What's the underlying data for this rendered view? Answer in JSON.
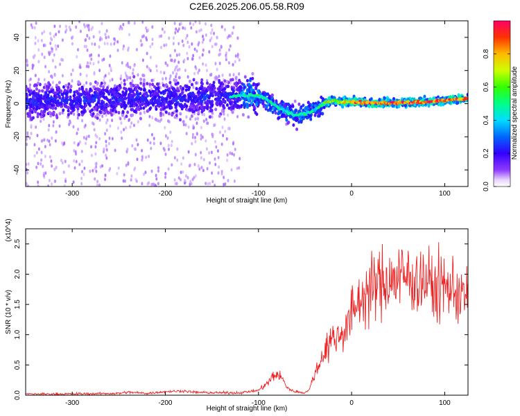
{
  "title": "C2E6.2025.206.05.58.R09",
  "chart_data": [
    {
      "type": "heatmap",
      "title": "",
      "xlabel": "Height of straight line (km)",
      "ylabel": "Frequency (Hz)",
      "xlim": [
        -350,
        125
      ],
      "ylim": [
        -50,
        50
      ],
      "xticks": [
        -300,
        -200,
        -100,
        0,
        100
      ],
      "yticks": [
        -40,
        -20,
        0,
        20,
        40
      ],
      "colorbar": {
        "label": "Normalized spectral amplitude",
        "ticks": [
          "0.0",
          "0.2",
          "0.4",
          "0.6",
          "0.8"
        ],
        "range": [
          0,
          1
        ]
      },
      "ridge": {
        "x": [
          -350,
          -300,
          -250,
          -200,
          -150,
          -120,
          -100,
          -90,
          -80,
          -70,
          -60,
          -50,
          -40,
          -30,
          -20,
          -10,
          0,
          20,
          50,
          80,
          100,
          125
        ],
        "y": [
          2,
          2,
          3,
          3,
          4,
          5,
          5,
          2,
          -2,
          -5,
          -7,
          -6,
          -4,
          0,
          2,
          1,
          1,
          0.5,
          0.5,
          1,
          2,
          3
        ]
      }
    },
    {
      "type": "line",
      "title": "",
      "xlabel": "Height of straight line (km)",
      "ylabel": "SNR (10 * v/v)",
      "y_multiplier": "(x10^4)",
      "xlim": [
        -350,
        125
      ],
      "ylim": [
        0,
        2.75
      ],
      "xticks": [
        -300,
        -200,
        -100,
        0,
        100
      ],
      "yticks": [
        0.0,
        0.5,
        1.0,
        1.5,
        2.0,
        2.5
      ],
      "series": [
        {
          "color": "#ee2222",
          "x": [
            -350,
            -300,
            -250,
            -240,
            -220,
            -200,
            -180,
            -170,
            -150,
            -120,
            -100,
            -90,
            -85,
            -80,
            -75,
            -70,
            -65,
            -60,
            -55,
            -50,
            -45,
            -40,
            -35,
            -30,
            -25,
            -20,
            -15,
            -10,
            -5,
            0,
            10,
            20,
            30,
            40,
            50,
            60,
            70,
            80,
            90,
            100,
            110,
            120,
            125
          ],
          "y": [
            0.02,
            0.02,
            0.03,
            0.05,
            0.03,
            0.06,
            0.07,
            0.05,
            0.04,
            0.04,
            0.08,
            0.2,
            0.3,
            0.35,
            0.28,
            0.15,
            0.08,
            0.06,
            0.05,
            0.04,
            0.1,
            0.35,
            0.5,
            0.7,
            0.85,
            0.95,
            0.95,
            1.05,
            1.15,
            1.35,
            1.6,
            1.75,
            1.85,
            1.9,
            1.95,
            1.95,
            1.9,
            1.9,
            1.75,
            1.8,
            1.75,
            1.65,
            1.6
          ]
        }
      ]
    }
  ]
}
